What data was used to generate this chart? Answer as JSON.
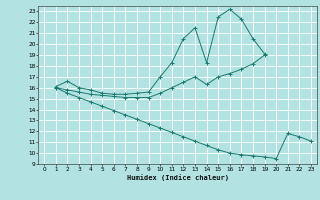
{
  "xlabel": "Humidex (Indice chaleur)",
  "background_color": "#b3e2e2",
  "grid_color": "#ffffff",
  "line_color": "#1a7a6e",
  "xlim": [
    -0.5,
    23.5
  ],
  "ylim": [
    9,
    23.5
  ],
  "xticks": [
    0,
    1,
    2,
    3,
    4,
    5,
    6,
    7,
    8,
    9,
    10,
    11,
    12,
    13,
    14,
    15,
    16,
    17,
    18,
    19,
    20,
    21,
    22,
    23
  ],
  "yticks": [
    9,
    10,
    11,
    12,
    13,
    14,
    15,
    16,
    17,
    18,
    19,
    20,
    21,
    22,
    23
  ],
  "line1_x": [
    1,
    2,
    3,
    4,
    5,
    6,
    7,
    8,
    9,
    10,
    11,
    12,
    13,
    14,
    15,
    16,
    17,
    18,
    19
  ],
  "line1_y": [
    16.1,
    16.6,
    16.0,
    15.8,
    15.5,
    15.4,
    15.4,
    15.5,
    15.6,
    17.0,
    18.3,
    20.5,
    21.5,
    18.3,
    22.5,
    23.2,
    22.3,
    20.5,
    19.1
  ],
  "line2_x": [
    1,
    2,
    3,
    4,
    5,
    6,
    7,
    8,
    9,
    10,
    11,
    12,
    13,
    14,
    15,
    16,
    17,
    18,
    19
  ],
  "line2_y": [
    16.0,
    15.8,
    15.6,
    15.4,
    15.3,
    15.2,
    15.1,
    15.1,
    15.1,
    15.5,
    16.0,
    16.5,
    17.0,
    16.3,
    17.0,
    17.3,
    17.7,
    18.2,
    19.0
  ],
  "line3_x": [
    1,
    2,
    3,
    4,
    5,
    6,
    7,
    8,
    9,
    10,
    11,
    12,
    13,
    14,
    15,
    16,
    17,
    18,
    19,
    20,
    21,
    22,
    23
  ],
  "line3_y": [
    16.0,
    15.5,
    15.1,
    14.7,
    14.3,
    13.9,
    13.5,
    13.1,
    12.7,
    12.3,
    11.9,
    11.5,
    11.1,
    10.7,
    10.3,
    10.0,
    9.85,
    9.75,
    9.65,
    9.5,
    11.8,
    11.5,
    11.1
  ]
}
